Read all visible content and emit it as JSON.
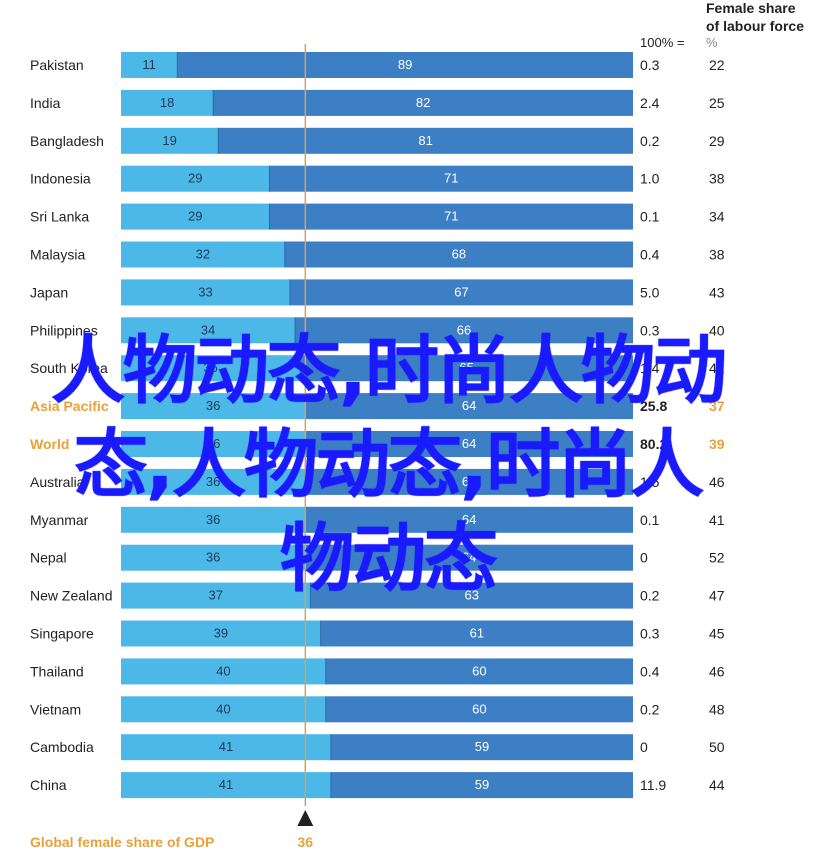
{
  "chart_data": {
    "type": "bar",
    "stacked": true,
    "categories": [
      "Pakistan",
      "India",
      "Bangladesh",
      "Indonesia",
      "Sri Lanka",
      "Malaysia",
      "Japan",
      "Philippines",
      "South Korea",
      "Asia Pacific",
      "World",
      "Australia",
      "Myanmar",
      "Nepal",
      "New Zealand",
      "Singapore",
      "Thailand",
      "Vietnam",
      "Cambodia",
      "China"
    ],
    "highlighted_categories": [
      "Asia Pacific",
      "World"
    ],
    "series": [
      {
        "values": [
          11,
          18,
          19,
          29,
          29,
          32,
          33,
          34,
          35,
          36,
          36,
          36,
          36,
          36,
          37,
          39,
          40,
          40,
          41,
          41
        ],
        "color": "#4cb8e8"
      },
      {
        "values": [
          89,
          82,
          81,
          71,
          71,
          68,
          67,
          66,
          65,
          64,
          64,
          64,
          64,
          64,
          63,
          61,
          60,
          60,
          59,
          59
        ],
        "color": "#3d7fc4"
      }
    ],
    "xlim": [
      0,
      100
    ],
    "reference_line": {
      "value": 36,
      "label": "36",
      "caption": "Global female share of GDP"
    },
    "col1": {
      "header": "100% =",
      "values": [
        "0.3",
        "2.4",
        "0.2",
        "1.0",
        "0.1",
        "0.4",
        "5.0",
        "0.3",
        "1.4",
        "25.8",
        "80.2",
        "1.5",
        "0.1",
        "0",
        "0.2",
        "0.3",
        "0.4",
        "0.2",
        "0",
        "11.9"
      ]
    },
    "col2": {
      "header": "Female share of labour force",
      "unit": "%",
      "values": [
        "22",
        "25",
        "29",
        "38",
        "34",
        "38",
        "43",
        "40",
        "42",
        "37",
        "39",
        "46",
        "41",
        "52",
        "47",
        "45",
        "46",
        "48",
        "50",
        "44"
      ]
    },
    "highlight_color": "#e8a13a",
    "ref_color": "#d9a05a"
  },
  "overlay": {
    "line1": "人物动态,时尚人物动",
    "line2": "态,人物动态,时尚人",
    "line3": "物动态"
  }
}
